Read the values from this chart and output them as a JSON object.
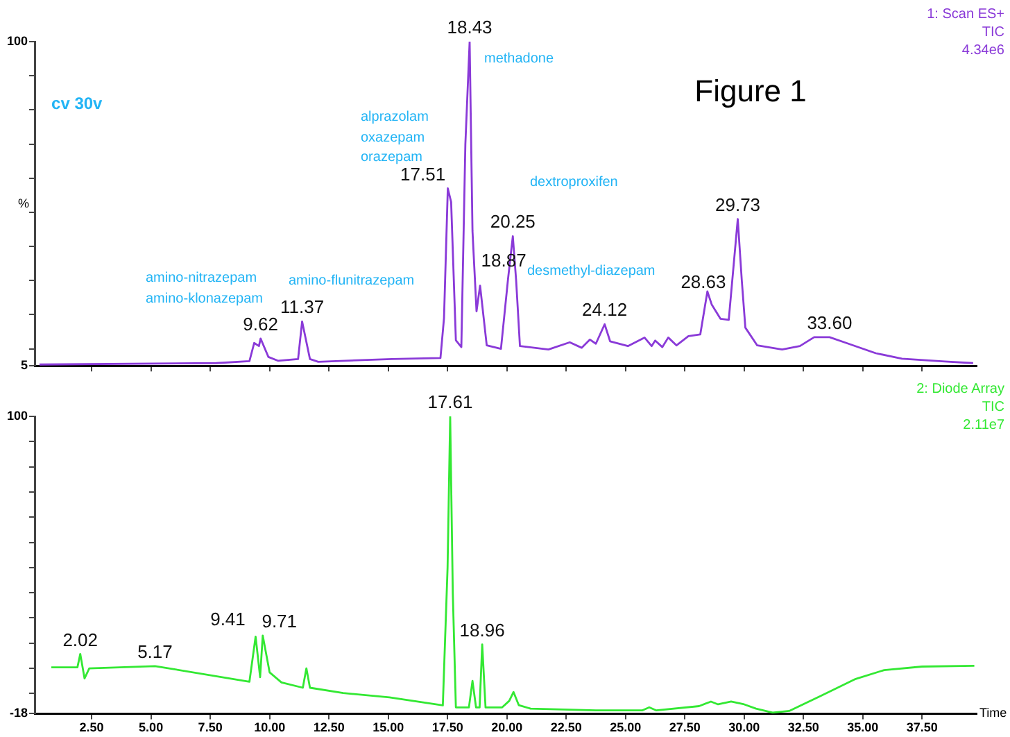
{
  "chart_data": [
    {
      "type": "line",
      "title": "Figure 1",
      "subtitle": "cv 30v",
      "ylabel": "%",
      "tick_labels": "y",
      "grid": false,
      "legend": false,
      "marker": "none",
      "line_style": "solid",
      "xlim": [
        0.1,
        39.8
      ],
      "ylim": [
        5,
        100
      ],
      "xticks": [
        2.5,
        5,
        7.5,
        10,
        12.5,
        15,
        17.5,
        20,
        22.5,
        25,
        27.5,
        30,
        32.5,
        35,
        37.5
      ],
      "yticks": [
        5,
        {
          "value": 10,
          "label": null
        },
        {
          "value": 20,
          "label": null
        },
        {
          "value": 30,
          "label": null
        },
        {
          "value": 40,
          "label": null
        },
        {
          "value": 50,
          "label": null
        },
        {
          "value": 60,
          "label": null
        },
        {
          "value": 70,
          "label": null
        },
        {
          "value": 80,
          "label": null
        },
        {
          "value": 90,
          "label": null
        },
        100
      ],
      "annotations": [
        "1: Scan ES+",
        "TIC",
        "4.34e6",
        "amino-nitrazepam",
        "amino-klonazepam",
        "amino-flunitrazepam",
        "alprazolam",
        "oxazepam",
        "orazepam",
        "methadone",
        "dextroproxifen",
        "desmethyl-diazepam",
        {
          "text": "9.62",
          "x": 9.62,
          "y": 13
        },
        {
          "text": "11.37",
          "x": 11.37,
          "y": 18
        },
        {
          "text": "17.51",
          "x": 17.51,
          "y": 57
        },
        {
          "text": "18.43",
          "x": 18.43,
          "y": 100
        },
        {
          "text": "18.87",
          "x": 18.87,
          "y": 28.5
        },
        {
          "text": "20.25",
          "x": 20.25,
          "y": 43
        },
        {
          "text": "24.12",
          "x": 24.12,
          "y": 17.2
        },
        {
          "text": "28.63",
          "x": 28.63,
          "y": 23
        },
        {
          "text": "29.73",
          "x": 29.73,
          "y": 48
        },
        {
          "text": "33.60",
          "x": 33.6,
          "y": 13.4
        }
      ],
      "series": [
        {
          "color": "#8a3ad8",
          "x": [
            0.3,
            7.75,
            9.15,
            9.35,
            9.55,
            9.62,
            9.95,
            10.35,
            11.2,
            11.37,
            11.7,
            12.05,
            15.15,
            17.2,
            17.35,
            17.51,
            17.65,
            17.85,
            18.08,
            18.25,
            18.43,
            18.55,
            18.72,
            18.87,
            19.15,
            19.75,
            20.05,
            20.25,
            20.39,
            20.55,
            21.75,
            22.65,
            23.15,
            23.5,
            23.75,
            24.12,
            24.35,
            25.1,
            25.8,
            26.1,
            26.25,
            26.55,
            26.8,
            27.15,
            27.65,
            28.15,
            28.45,
            28.63,
            29.0,
            29.35,
            29.73,
            29.9,
            30.05,
            30.55,
            31.6,
            32.35,
            32.95,
            33.6,
            34.35,
            35.55,
            36.65,
            38.45,
            39.65
          ],
          "values": [
            5.4,
            5.8,
            6.4,
            11.7,
            10.8,
            13,
            7.6,
            6.5,
            7,
            18,
            7,
            6.2,
            7,
            7.3,
            19,
            57,
            53,
            12.5,
            10.5,
            70,
            100,
            44.5,
            21,
            28.5,
            11,
            10,
            30.6,
            43,
            30,
            10.8,
            9.8,
            11.9,
            10.3,
            12.7,
            11.5,
            17.2,
            12.2,
            10.8,
            13.3,
            10.8,
            12.4,
            10.5,
            13.3,
            11,
            13.7,
            14.2,
            26.8,
            23,
            18.8,
            18.5,
            48,
            30,
            16.2,
            11,
            9.8,
            10.8,
            13.4,
            13.4,
            11.6,
            8.7,
            7.1,
            6.3,
            5.8
          ]
        }
      ]
    },
    {
      "type": "line",
      "xlabel": "Time",
      "grid": false,
      "legend": false,
      "marker": "none",
      "line_style": "solid",
      "xlim": [
        0.1,
        39.8
      ],
      "ylim": [
        -18,
        100
      ],
      "xticks": [
        {
          "value": 2.5,
          "label": "2.50"
        },
        {
          "value": 5,
          "label": "5.00"
        },
        {
          "value": 7.5,
          "label": "7.50"
        },
        {
          "value": 10,
          "label": "10.00"
        },
        {
          "value": 12.5,
          "label": "12.50"
        },
        {
          "value": 15,
          "label": "15.00"
        },
        {
          "value": 17.5,
          "label": "17.50"
        },
        {
          "value": 20,
          "label": "20.00"
        },
        {
          "value": 22.5,
          "label": "22.50"
        },
        {
          "value": 25,
          "label": "25.00"
        },
        {
          "value": 27.5,
          "label": "27.50"
        },
        {
          "value": 30,
          "label": "30.00"
        },
        {
          "value": 32.5,
          "label": "32.50"
        },
        {
          "value": 35,
          "label": "35.00"
        },
        {
          "value": 37.5,
          "label": "37.50"
        }
      ],
      "yticks": [
        -18,
        {
          "value": -10,
          "label": null
        },
        {
          "value": 0,
          "label": null
        },
        {
          "value": 10,
          "label": null
        },
        {
          "value": 20,
          "label": null
        },
        {
          "value": 30,
          "label": null
        },
        {
          "value": 40,
          "label": null
        },
        {
          "value": 50,
          "label": null
        },
        {
          "value": 60,
          "label": null
        },
        {
          "value": 70,
          "label": null
        },
        {
          "value": 80,
          "label": null
        },
        {
          "value": 90,
          "label": null
        },
        100
      ],
      "annotations": [
        "2: Diode Array",
        "TIC",
        "2.11e7",
        {
          "text": "2.02",
          "x": 2.02,
          "y": 5.7
        },
        {
          "text": "5.17",
          "x": 5.17,
          "y": 0.9
        },
        {
          "text": "9.41",
          "x": 9.41,
          "y": 12.6
        },
        {
          "text": "9.71",
          "x": 9.71,
          "y": 13
        },
        {
          "text": "17.61",
          "x": 17.61,
          "y": 100
        },
        {
          "text": "18.96",
          "x": 18.96,
          "y": 9.5
        }
      ],
      "series": [
        {
          "color": "#33e833",
          "x": [
            0.8,
            1.9,
            2.02,
            2.2,
            2.4,
            5.17,
            9.15,
            9.41,
            9.6,
            9.71,
            10.0,
            10.5,
            11.4,
            11.55,
            11.7,
            13.1,
            15.05,
            17.3,
            17.5,
            17.61,
            17.72,
            17.85,
            18.4,
            18.55,
            18.7,
            18.85,
            18.96,
            19.1,
            19.8,
            20.1,
            20.28,
            20.5,
            21.0,
            23.75,
            25.7,
            26.0,
            26.3,
            28.1,
            28.6,
            28.9,
            29.45,
            30.0,
            30.5,
            31.2,
            31.9,
            33.2,
            34.7,
            35.9,
            37.5,
            39.7
          ],
          "values": [
            0.4,
            0.4,
            5.7,
            -4,
            0,
            0.9,
            -5.3,
            12.6,
            -3.5,
            13,
            -1.6,
            -5.6,
            -7.7,
            0,
            -7.7,
            -9.8,
            -11.5,
            -14.7,
            40,
            100,
            30,
            -15.5,
            -15.5,
            -5,
            -15.5,
            -15.5,
            9.5,
            -15.5,
            -15.5,
            -12.9,
            -9.4,
            -14.6,
            -16,
            -16.7,
            -16.7,
            -15.5,
            -16.7,
            -15,
            -13.2,
            -14.3,
            -13.2,
            -14.3,
            -16,
            -17.6,
            -16.9,
            -11.1,
            -4.2,
            -0.7,
            0.7,
            1
          ]
        }
      ]
    }
  ]
}
